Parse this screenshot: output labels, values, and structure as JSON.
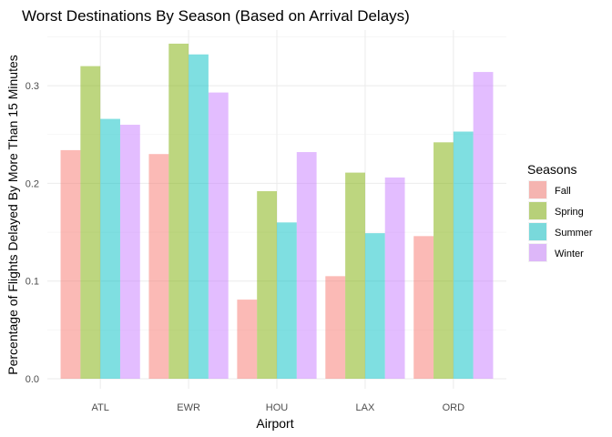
{
  "chart_data": {
    "type": "bar",
    "title": "Worst Destinations By Season (Based on Arrival Delays)",
    "xlabel": "Airport",
    "ylabel": "Percentage of Flights Delayed By More Than 15 Minutes",
    "categories": [
      "ATL",
      "EWR",
      "HOU",
      "LAX",
      "ORD"
    ],
    "ylim": [
      0,
      0.35
    ],
    "yticks": [
      0.0,
      0.1,
      0.2,
      0.3
    ],
    "ytick_labels": [
      "0.0",
      "0.1",
      "0.2",
      "0.3"
    ],
    "grid": true,
    "legend_title": "Seasons",
    "legend_position": "right",
    "series": [
      {
        "name": "Fall",
        "color": "#F8766D",
        "values": [
          0.234,
          0.23,
          0.081,
          0.105,
          0.146
        ]
      },
      {
        "name": "Spring",
        "color": "#7CAE00",
        "values": [
          0.32,
          0.343,
          0.192,
          0.211,
          0.242
        ]
      },
      {
        "name": "Summer",
        "color": "#00BFC4",
        "values": [
          0.266,
          0.332,
          0.16,
          0.149,
          0.253
        ]
      },
      {
        "name": "Winter",
        "color": "#C77CFF",
        "values": [
          0.26,
          0.293,
          0.232,
          0.206,
          0.314
        ]
      }
    ]
  }
}
